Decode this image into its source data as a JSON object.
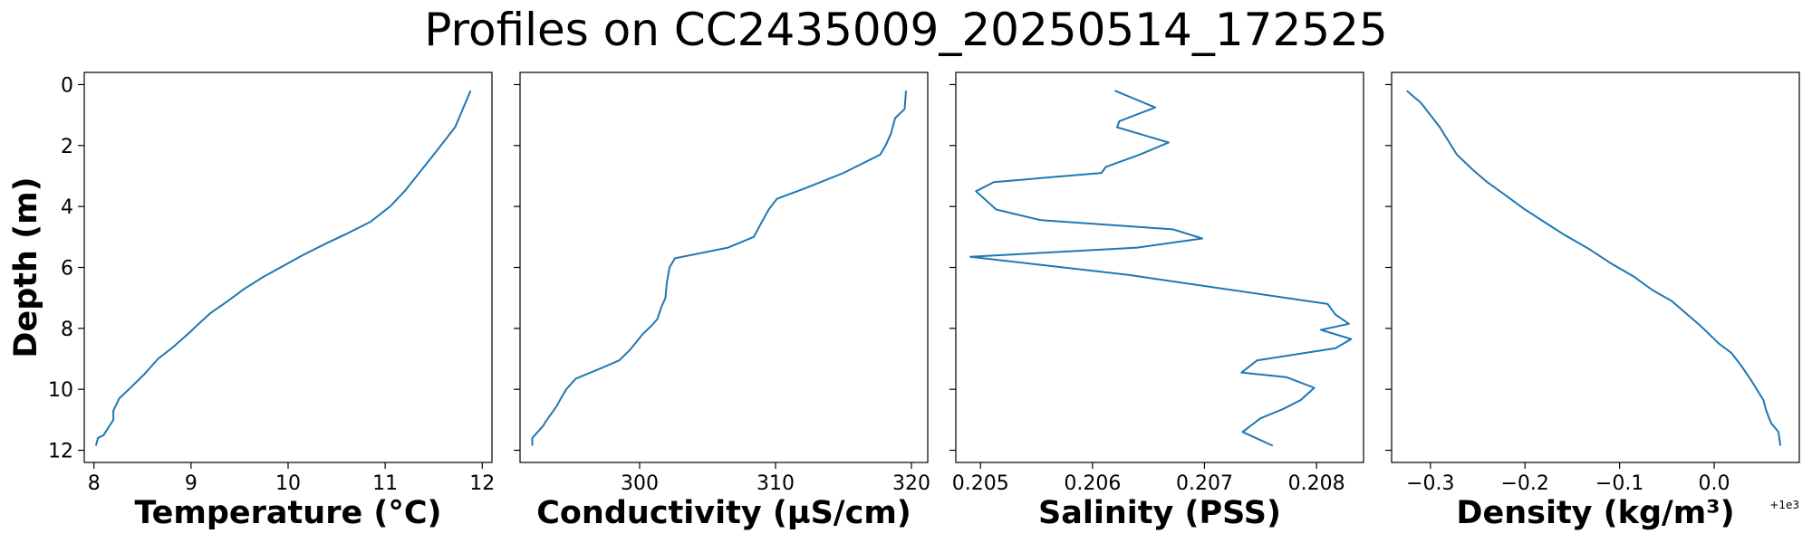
{
  "figure": {
    "title": "Profiles on CC2435009_20250514_172525"
  },
  "chart_data": [
    {
      "type": "line",
      "xlabel": "Temperature (°C)",
      "ylabel": "Depth (m)",
      "xlim": [
        7.9,
        12.1
      ],
      "ylim": [
        12.4,
        -0.4
      ],
      "xticks": [
        "8",
        "9",
        "10",
        "11",
        "12"
      ],
      "yticks": [
        "0",
        "2",
        "4",
        "6",
        "8",
        "10",
        "12"
      ],
      "x": [
        11.88,
        11.8,
        11.72,
        11.5,
        11.35,
        11.2,
        11.05,
        10.85,
        10.6,
        10.4,
        10.15,
        9.95,
        9.75,
        9.55,
        9.38,
        9.2,
        9.08,
        8.98,
        8.82,
        8.66,
        8.52,
        8.36,
        8.26,
        8.2,
        8.2,
        8.14,
        8.1,
        8.04,
        8.02
      ],
      "y": [
        0.2,
        0.8,
        1.4,
        2.3,
        2.9,
        3.5,
        4.0,
        4.5,
        4.9,
        5.2,
        5.6,
        5.95,
        6.3,
        6.7,
        7.1,
        7.5,
        7.85,
        8.15,
        8.6,
        9.0,
        9.5,
        10.0,
        10.3,
        10.7,
        11.0,
        11.3,
        11.5,
        11.6,
        11.85
      ],
      "x_offset_label": ""
    },
    {
      "type": "line",
      "xlabel": "Conductivity (µS/cm)",
      "ylabel": "",
      "xlim": [
        291.2,
        321.2
      ],
      "ylim": [
        12.4,
        -0.4
      ],
      "xticks": [
        "300",
        "310",
        "320"
      ],
      "yticks": [],
      "x": [
        319.6,
        319.5,
        318.8,
        318.5,
        318.1,
        317.7,
        315,
        312.2,
        310.1,
        309.5,
        309,
        308.4,
        306.5,
        302.6,
        302.2,
        302,
        301.9,
        301.6,
        301.3,
        300.9,
        300.2,
        299.3,
        298.5,
        297.2,
        295.3,
        294.6,
        294.2,
        293.9,
        293.1,
        292.9,
        292.5,
        292.1,
        292.1
      ],
      "y": [
        0.2,
        0.8,
        1.1,
        1.6,
        2.0,
        2.3,
        2.9,
        3.4,
        3.75,
        4.1,
        4.5,
        5.0,
        5.35,
        5.7,
        6.0,
        6.5,
        7.0,
        7.3,
        7.7,
        7.9,
        8.2,
        8.7,
        9.05,
        9.3,
        9.65,
        10.0,
        10.3,
        10.55,
        11.05,
        11.2,
        11.4,
        11.6,
        11.85
      ],
      "x_offset_label": ""
    },
    {
      "type": "line",
      "xlabel": "Salinity (PSS)",
      "ylabel": "",
      "xlim": [
        0.20478,
        0.20842
      ],
      "ylim": [
        12.4,
        -0.4
      ],
      "xticks": [
        "0.205",
        "0.206",
        "0.207",
        "0.208"
      ],
      "yticks": [],
      "x": [
        0.2062,
        0.20656,
        0.20624,
        0.20622,
        0.20668,
        0.20642,
        0.20612,
        0.20608,
        0.20512,
        0.20496,
        0.20514,
        0.20554,
        0.20672,
        0.20698,
        0.2064,
        0.20491,
        0.20633,
        0.2081,
        0.20817,
        0.20829,
        0.20804,
        0.20831,
        0.20817,
        0.20747,
        0.20733,
        0.20773,
        0.20798,
        0.20786,
        0.2077,
        0.2075,
        0.20734,
        0.20761
      ],
      "y": [
        0.2,
        0.75,
        1.2,
        1.4,
        1.9,
        2.3,
        2.7,
        2.9,
        3.2,
        3.5,
        4.1,
        4.45,
        4.75,
        5.05,
        5.35,
        5.65,
        6.25,
        7.2,
        7.55,
        7.85,
        8.05,
        8.35,
        8.65,
        9.05,
        9.45,
        9.6,
        9.95,
        10.35,
        10.65,
        10.95,
        11.4,
        11.85
      ],
      "x_offset_label": ""
    },
    {
      "type": "line",
      "xlabel": "Density (kg/m³)",
      "ylabel": "",
      "xlim": [
        -0.341,
        0.09
      ],
      "ylim": [
        12.4,
        -0.4
      ],
      "xticks": [
        "−0.3",
        "−0.2",
        "−0.1",
        "0.0"
      ],
      "yticks": [],
      "x": [
        -0.325,
        -0.31,
        -0.3,
        -0.29,
        -0.272,
        -0.255,
        -0.24,
        -0.222,
        -0.2,
        -0.18,
        -0.16,
        -0.132,
        -0.11,
        -0.085,
        -0.065,
        -0.045,
        -0.03,
        -0.015,
        -0.005,
        0.005,
        0.018,
        0.028,
        0.038,
        0.045,
        0.052,
        0.055,
        0.06,
        0.068,
        0.07
      ],
      "y": [
        0.2,
        0.6,
        1.0,
        1.4,
        2.3,
        2.8,
        3.2,
        3.6,
        4.1,
        4.5,
        4.9,
        5.4,
        5.85,
        6.3,
        6.75,
        7.1,
        7.5,
        7.9,
        8.2,
        8.5,
        8.8,
        9.2,
        9.65,
        10.0,
        10.35,
        10.7,
        11.1,
        11.4,
        11.85
      ],
      "x_offset_label": "+1e3"
    }
  ]
}
